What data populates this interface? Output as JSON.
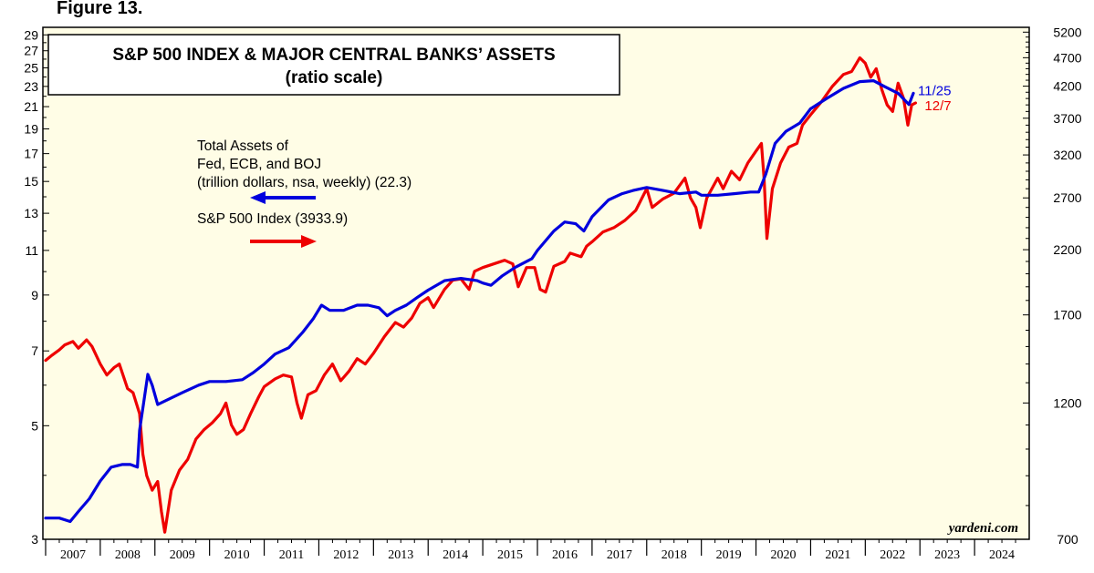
{
  "figure_label": "Figure 13.",
  "chart_data": {
    "type": "line",
    "title": "S&P 500 INDEX & MAJOR CENTRAL BANKS’ ASSETS",
    "subtitle": "(ratio scale)",
    "source": "yardeni.com",
    "colors": {
      "assets": "#0000dd",
      "sp500": "#ee0000",
      "background": "#fffde6"
    },
    "x_categories": [
      "2007",
      "2008",
      "2009",
      "2010",
      "2011",
      "2012",
      "2013",
      "2014",
      "2015",
      "2016",
      "2017",
      "2018",
      "2019",
      "2020",
      "2021",
      "2022",
      "2023",
      "2024"
    ],
    "xlim": [
      2006.95,
      2025.0
    ],
    "left_axis": {
      "scale": "log",
      "ylim": [
        3,
        30
      ],
      "ticks": [
        3,
        5,
        7,
        9,
        11,
        13,
        15,
        17,
        19,
        21,
        23,
        25,
        27,
        29
      ],
      "tick_labels": [
        "3",
        "5",
        "7",
        "9",
        "11",
        "13",
        "15",
        "17",
        "19",
        "21",
        "23",
        "25",
        "27",
        "29"
      ]
    },
    "right_axis": {
      "scale": "log",
      "ylim": [
        700,
        5300
      ],
      "ticks": [
        700,
        1200,
        1700,
        2200,
        2700,
        3200,
        3700,
        4200,
        4700,
        5200
      ],
      "tick_labels": [
        "700",
        "1200",
        "1700",
        "2200",
        "2700",
        "3200",
        "3700",
        "4200",
        "4700",
        "5200"
      ]
    },
    "legend": {
      "assets_lines": [
        "Total Assets of",
        "Fed, ECB, and BOJ",
        "(trillion dollars, nsa, weekly) (22.3)"
      ],
      "sp500_line": "S&P 500 Index (3933.9)"
    },
    "end_labels": {
      "assets": "11/25",
      "sp500": "12/7"
    },
    "series": [
      {
        "name": "Total Assets of Fed, ECB, and BOJ (trillion dollars)",
        "axis": "left",
        "points": [
          [
            2007.0,
            3.3
          ],
          [
            2007.25,
            3.3
          ],
          [
            2007.45,
            3.25
          ],
          [
            2007.6,
            3.4
          ],
          [
            2007.8,
            3.6
          ],
          [
            2008.0,
            3.9
          ],
          [
            2008.2,
            4.15
          ],
          [
            2008.4,
            4.2
          ],
          [
            2008.55,
            4.2
          ],
          [
            2008.68,
            4.15
          ],
          [
            2008.72,
            4.9
          ],
          [
            2008.8,
            5.6
          ],
          [
            2008.87,
            6.3
          ],
          [
            2008.95,
            6.0
          ],
          [
            2009.05,
            5.5
          ],
          [
            2009.2,
            5.6
          ],
          [
            2009.5,
            5.8
          ],
          [
            2009.8,
            6.0
          ],
          [
            2010.0,
            6.1
          ],
          [
            2010.3,
            6.1
          ],
          [
            2010.6,
            6.15
          ],
          [
            2010.8,
            6.35
          ],
          [
            2011.0,
            6.6
          ],
          [
            2011.2,
            6.9
          ],
          [
            2011.45,
            7.1
          ],
          [
            2011.7,
            7.6
          ],
          [
            2011.9,
            8.1
          ],
          [
            2012.05,
            8.6
          ],
          [
            2012.2,
            8.4
          ],
          [
            2012.45,
            8.4
          ],
          [
            2012.7,
            8.6
          ],
          [
            2012.9,
            8.6
          ],
          [
            2013.1,
            8.5
          ],
          [
            2013.25,
            8.2
          ],
          [
            2013.4,
            8.4
          ],
          [
            2013.6,
            8.6
          ],
          [
            2013.8,
            8.9
          ],
          [
            2014.0,
            9.2
          ],
          [
            2014.3,
            9.6
          ],
          [
            2014.6,
            9.7
          ],
          [
            2014.9,
            9.6
          ],
          [
            2015.0,
            9.5
          ],
          [
            2015.15,
            9.4
          ],
          [
            2015.35,
            9.8
          ],
          [
            2015.6,
            10.2
          ],
          [
            2015.9,
            10.6
          ],
          [
            2016.0,
            11.0
          ],
          [
            2016.3,
            12.0
          ],
          [
            2016.5,
            12.5
          ],
          [
            2016.7,
            12.4
          ],
          [
            2016.85,
            12.0
          ],
          [
            2017.0,
            12.8
          ],
          [
            2017.3,
            13.8
          ],
          [
            2017.55,
            14.2
          ],
          [
            2017.75,
            14.4
          ],
          [
            2018.0,
            14.6
          ],
          [
            2018.3,
            14.4
          ],
          [
            2018.6,
            14.2
          ],
          [
            2018.9,
            14.3
          ],
          [
            2019.0,
            14.1
          ],
          [
            2019.3,
            14.1
          ],
          [
            2019.6,
            14.2
          ],
          [
            2019.9,
            14.3
          ],
          [
            2020.05,
            14.3
          ],
          [
            2020.18,
            15.5
          ],
          [
            2020.35,
            17.8
          ],
          [
            2020.55,
            18.8
          ],
          [
            2020.8,
            19.5
          ],
          [
            2021.0,
            20.8
          ],
          [
            2021.3,
            21.8
          ],
          [
            2021.6,
            22.8
          ],
          [
            2021.9,
            23.5
          ],
          [
            2022.15,
            23.6
          ],
          [
            2022.35,
            23.0
          ],
          [
            2022.6,
            22.3
          ],
          [
            2022.8,
            21.2
          ],
          [
            2022.88,
            22.3
          ]
        ]
      },
      {
        "name": "S&P 500 Index",
        "axis": "right",
        "points": [
          [
            2007.0,
            1420
          ],
          [
            2007.12,
            1450
          ],
          [
            2007.25,
            1480
          ],
          [
            2007.35,
            1510
          ],
          [
            2007.5,
            1530
          ],
          [
            2007.6,
            1490
          ],
          [
            2007.75,
            1540
          ],
          [
            2007.85,
            1500
          ],
          [
            2008.0,
            1400
          ],
          [
            2008.12,
            1340
          ],
          [
            2008.25,
            1380
          ],
          [
            2008.35,
            1400
          ],
          [
            2008.5,
            1270
          ],
          [
            2008.6,
            1250
          ],
          [
            2008.72,
            1150
          ],
          [
            2008.78,
            980
          ],
          [
            2008.85,
            900
          ],
          [
            2008.95,
            850
          ],
          [
            2009.05,
            880
          ],
          [
            2009.12,
            780
          ],
          [
            2009.18,
            720
          ],
          [
            2009.3,
            850
          ],
          [
            2009.45,
            920
          ],
          [
            2009.6,
            960
          ],
          [
            2009.75,
            1040
          ],
          [
            2009.9,
            1080
          ],
          [
            2010.05,
            1110
          ],
          [
            2010.2,
            1150
          ],
          [
            2010.3,
            1200
          ],
          [
            2010.4,
            1100
          ],
          [
            2010.5,
            1060
          ],
          [
            2010.62,
            1080
          ],
          [
            2010.75,
            1150
          ],
          [
            2010.9,
            1230
          ],
          [
            2011.0,
            1280
          ],
          [
            2011.2,
            1320
          ],
          [
            2011.35,
            1340
          ],
          [
            2011.5,
            1330
          ],
          [
            2011.6,
            1200
          ],
          [
            2011.68,
            1130
          ],
          [
            2011.8,
            1240
          ],
          [
            2011.95,
            1260
          ],
          [
            2012.1,
            1340
          ],
          [
            2012.25,
            1400
          ],
          [
            2012.4,
            1310
          ],
          [
            2012.55,
            1360
          ],
          [
            2012.7,
            1430
          ],
          [
            2012.85,
            1400
          ],
          [
            2013.0,
            1460
          ],
          [
            2013.2,
            1560
          ],
          [
            2013.4,
            1650
          ],
          [
            2013.55,
            1620
          ],
          [
            2013.7,
            1680
          ],
          [
            2013.85,
            1780
          ],
          [
            2014.0,
            1820
          ],
          [
            2014.1,
            1750
          ],
          [
            2014.3,
            1880
          ],
          [
            2014.45,
            1950
          ],
          [
            2014.6,
            1960
          ],
          [
            2014.75,
            1880
          ],
          [
            2014.85,
            2020
          ],
          [
            2015.0,
            2050
          ],
          [
            2015.2,
            2080
          ],
          [
            2015.4,
            2110
          ],
          [
            2015.55,
            2080
          ],
          [
            2015.65,
            1900
          ],
          [
            2015.8,
            2050
          ],
          [
            2015.95,
            2050
          ],
          [
            2016.05,
            1880
          ],
          [
            2016.15,
            1860
          ],
          [
            2016.3,
            2060
          ],
          [
            2016.5,
            2100
          ],
          [
            2016.6,
            2170
          ],
          [
            2016.8,
            2140
          ],
          [
            2016.9,
            2230
          ],
          [
            2017.0,
            2270
          ],
          [
            2017.2,
            2360
          ],
          [
            2017.4,
            2400
          ],
          [
            2017.6,
            2470
          ],
          [
            2017.8,
            2570
          ],
          [
            2018.0,
            2800
          ],
          [
            2018.1,
            2600
          ],
          [
            2018.3,
            2690
          ],
          [
            2018.5,
            2750
          ],
          [
            2018.7,
            2920
          ],
          [
            2018.8,
            2700
          ],
          [
            2018.9,
            2600
          ],
          [
            2018.98,
            2400
          ],
          [
            2019.1,
            2700
          ],
          [
            2019.3,
            2920
          ],
          [
            2019.4,
            2800
          ],
          [
            2019.55,
            3000
          ],
          [
            2019.7,
            2900
          ],
          [
            2019.85,
            3100
          ],
          [
            2020.0,
            3250
          ],
          [
            2020.1,
            3350
          ],
          [
            2020.15,
            2900
          ],
          [
            2020.2,
            2300
          ],
          [
            2020.3,
            2800
          ],
          [
            2020.45,
            3100
          ],
          [
            2020.6,
            3300
          ],
          [
            2020.75,
            3350
          ],
          [
            2020.85,
            3600
          ],
          [
            2021.0,
            3750
          ],
          [
            2021.2,
            3950
          ],
          [
            2021.4,
            4200
          ],
          [
            2021.6,
            4400
          ],
          [
            2021.75,
            4450
          ],
          [
            2021.9,
            4700
          ],
          [
            2022.0,
            4600
          ],
          [
            2022.1,
            4350
          ],
          [
            2022.2,
            4500
          ],
          [
            2022.3,
            4150
          ],
          [
            2022.4,
            3900
          ],
          [
            2022.5,
            3800
          ],
          [
            2022.6,
            4250
          ],
          [
            2022.7,
            4000
          ],
          [
            2022.78,
            3600
          ],
          [
            2022.85,
            3900
          ],
          [
            2022.92,
            3930
          ]
        ]
      }
    ]
  }
}
